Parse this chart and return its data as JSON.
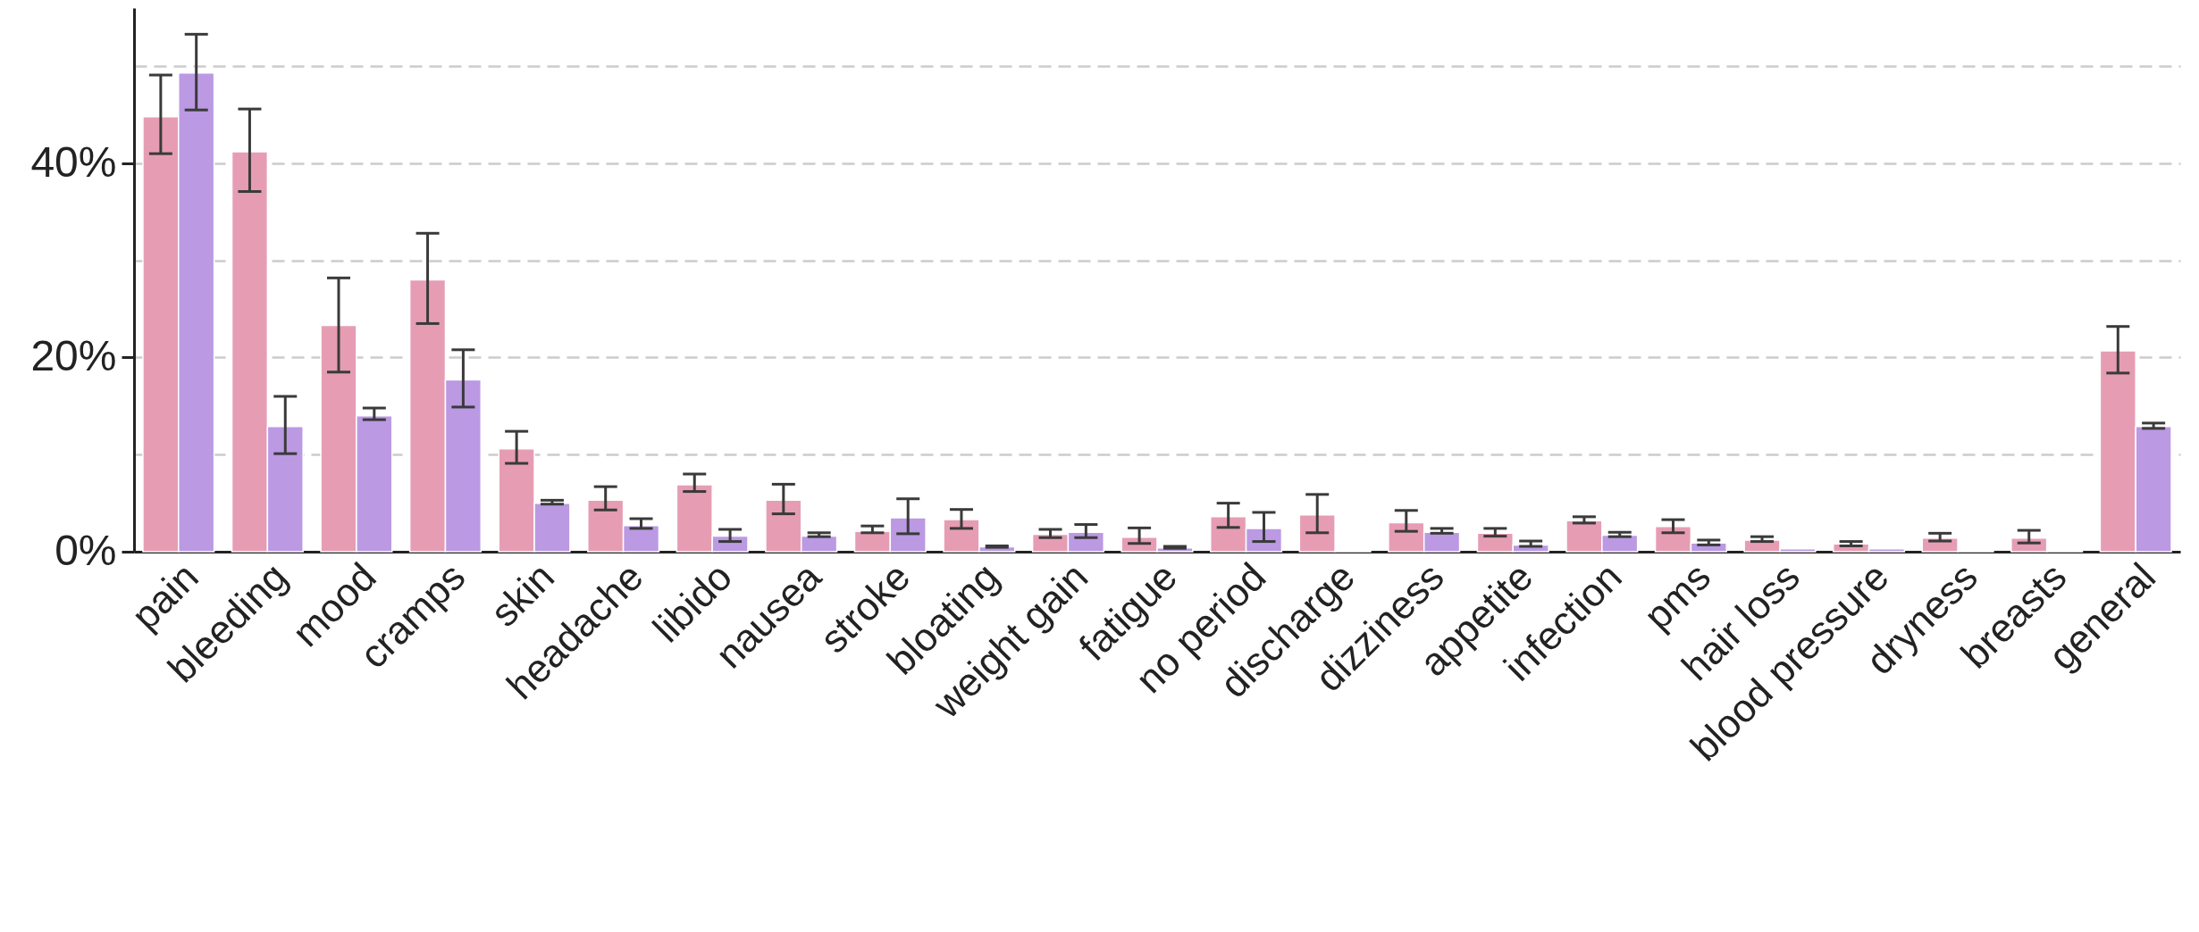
{
  "chart_data": {
    "type": "bar",
    "categories": [
      "pain",
      "bleeding",
      "mood",
      "cramps",
      "skin",
      "headache",
      "libido",
      "nausea",
      "stroke",
      "bloating",
      "weight gain",
      "fatigue",
      "no period",
      "discharge",
      "dizziness",
      "appetite",
      "infection",
      "pms",
      "hair loss",
      "blood pressure",
      "dryness",
      "breasts",
      "general"
    ],
    "series": [
      {
        "color": "#e69db4",
        "values": [
          44.8,
          41.2,
          23.3,
          28.0,
          10.6,
          5.3,
          6.9,
          5.3,
          2.1,
          3.3,
          1.8,
          1.5,
          3.6,
          3.8,
          3.0,
          1.9,
          3.2,
          2.6,
          1.2,
          0.8,
          1.4,
          1.4,
          20.7
        ],
        "errors": [
          [
            41.0,
            49.1
          ],
          [
            37.1,
            45.6
          ],
          [
            18.5,
            28.2
          ],
          [
            23.5,
            32.8
          ],
          [
            9.1,
            12.4
          ],
          [
            4.3,
            6.7
          ],
          [
            6.2,
            8.0
          ],
          [
            3.9,
            6.95
          ],
          [
            1.95,
            2.65
          ],
          [
            2.4,
            4.35
          ],
          [
            1.45,
            2.3
          ],
          [
            0.85,
            2.45
          ],
          [
            2.5,
            5.0
          ],
          [
            1.95,
            5.9
          ],
          [
            2.1,
            4.25
          ],
          [
            1.6,
            2.4
          ],
          [
            2.95,
            3.6
          ],
          [
            1.95,
            3.3
          ],
          [
            1.05,
            1.55
          ],
          [
            0.6,
            1.05
          ],
          [
            1.1,
            1.9
          ],
          [
            0.9,
            2.2
          ],
          [
            18.4,
            23.2
          ]
        ]
      },
      {
        "color": "#bb99e3",
        "values": [
          49.3,
          12.9,
          14.0,
          17.7,
          5.0,
          2.7,
          1.6,
          1.6,
          3.5,
          0.5,
          2.0,
          0.4,
          2.4,
          0.1,
          2.0,
          0.7,
          1.7,
          0.9,
          0.3,
          0.3,
          0.1,
          0.1,
          12.9
        ],
        "errors": [
          [
            45.5,
            53.3
          ],
          [
            10.1,
            16.0
          ],
          [
            13.6,
            14.8
          ],
          [
            14.9,
            20.8
          ],
          [
            4.9,
            5.3
          ],
          [
            2.4,
            3.4
          ],
          [
            1.05,
            2.3
          ],
          [
            1.55,
            1.95
          ],
          [
            1.85,
            5.45
          ],
          [
            0.45,
            0.6
          ],
          [
            1.45,
            2.8
          ],
          [
            0.35,
            0.55
          ],
          [
            1.05,
            4.05
          ],
          null,
          [
            1.9,
            2.4
          ],
          [
            0.55,
            1.1
          ],
          [
            1.55,
            2.0
          ],
          [
            0.7,
            1.2
          ],
          null,
          null,
          null,
          null,
          [
            12.7,
            13.25
          ]
        ]
      }
    ],
    "ylim": [
      0,
      56
    ],
    "yticks": [
      {
        "value": 0,
        "label": "0%"
      },
      {
        "value": 10,
        "label": null
      },
      {
        "value": 20,
        "label": "20%"
      },
      {
        "value": 30,
        "label": null
      },
      {
        "value": 40,
        "label": "40%"
      },
      {
        "value": 50,
        "label": null
      }
    ],
    "grid": "y"
  }
}
